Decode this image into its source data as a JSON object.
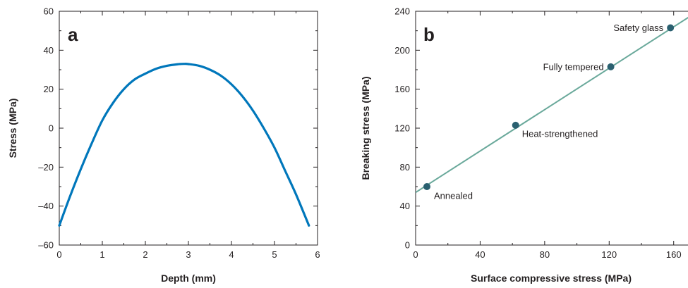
{
  "chart_data": [
    {
      "type": "line",
      "panel_label": "a",
      "xlabel": "Depth (mm)",
      "ylabel": "Stress (MPa)",
      "xlim": [
        0,
        6
      ],
      "ylim": [
        -60,
        60
      ],
      "xticks": [
        "0",
        "1",
        "2",
        "3",
        "4",
        "5",
        "6"
      ],
      "yticks": [
        "60",
        "40",
        "20",
        "0",
        "–20",
        "–40",
        "–60"
      ],
      "xtick_values": [
        0,
        1,
        2,
        3,
        4,
        5,
        6
      ],
      "ytick_values": [
        60,
        40,
        20,
        0,
        -20,
        -40,
        -60
      ],
      "series": [
        {
          "color": "#0077bb",
          "x": [
            0.0,
            0.25,
            0.5,
            0.75,
            1.0,
            1.25,
            1.5,
            1.75,
            2.0,
            2.25,
            2.5,
            2.75,
            2.9,
            3.0,
            3.25,
            3.5,
            3.75,
            4.0,
            4.25,
            4.5,
            4.75,
            5.0,
            5.25,
            5.5,
            5.8
          ],
          "y": [
            -50,
            -35,
            -21,
            -8,
            4,
            13,
            20,
            25,
            28,
            30.5,
            32,
            32.8,
            33,
            32.9,
            32,
            30,
            27,
            22.5,
            16.5,
            9,
            0,
            -10,
            -22,
            -34,
            -50
          ]
        }
      ]
    },
    {
      "type": "scatter",
      "panel_label": "b",
      "xlabel": "Surface compressive stress (MPa)",
      "ylabel": "Breaking stress (MPa)",
      "xlim": [
        0,
        175
      ],
      "ylim": [
        0,
        240
      ],
      "xticks": [
        "0",
        "40",
        "80",
        "120",
        "160"
      ],
      "yticks": [
        "240",
        "200",
        "160",
        "120",
        "80",
        "40",
        "0"
      ],
      "xtick_values": [
        0,
        40,
        80,
        120,
        160
      ],
      "ytick_values": [
        240,
        200,
        160,
        120,
        80,
        40,
        0
      ],
      "points": [
        {
          "label": "Annealed",
          "x": 7,
          "y": 60
        },
        {
          "label": "Heat-strengthened",
          "x": 62,
          "y": 123
        },
        {
          "label": "Fully tempered",
          "x": 121,
          "y": 183
        },
        {
          "label": "Safety glass",
          "x": 158,
          "y": 223
        }
      ],
      "fit_line": {
        "x": [
          0,
          175
        ],
        "y": [
          54,
          240
        ],
        "color": "#6aa99b"
      },
      "point_color": "#2a6070"
    }
  ]
}
